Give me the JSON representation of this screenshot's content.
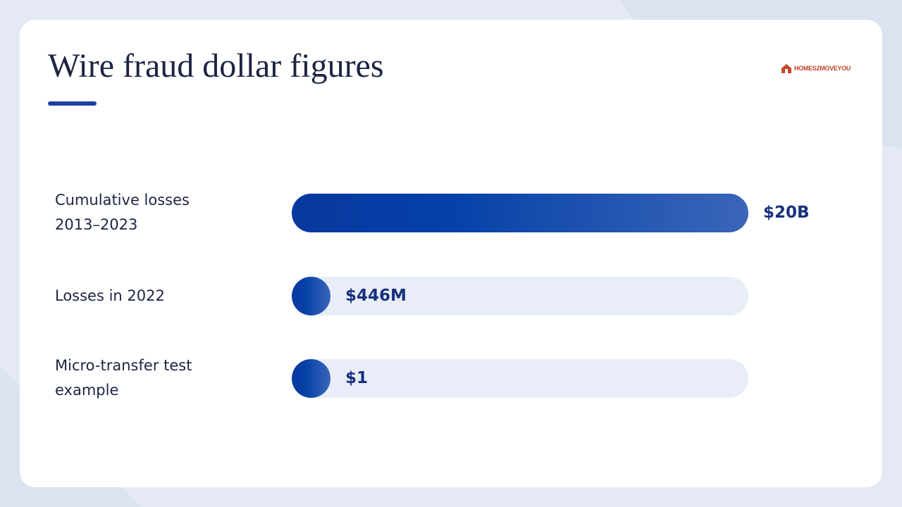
{
  "logo": "HOMES2MOVEYOU",
  "chart_data": {
    "type": "bar",
    "title": "Wire fraud dollar figures",
    "categories": [
      "Cumulative losses 2013–2023",
      "Losses in 2022",
      "Micro-transfer test example"
    ],
    "values": [
      20000000000,
      446000000,
      1
    ],
    "value_labels": [
      "$20B",
      "$446M",
      "$1"
    ]
  }
}
